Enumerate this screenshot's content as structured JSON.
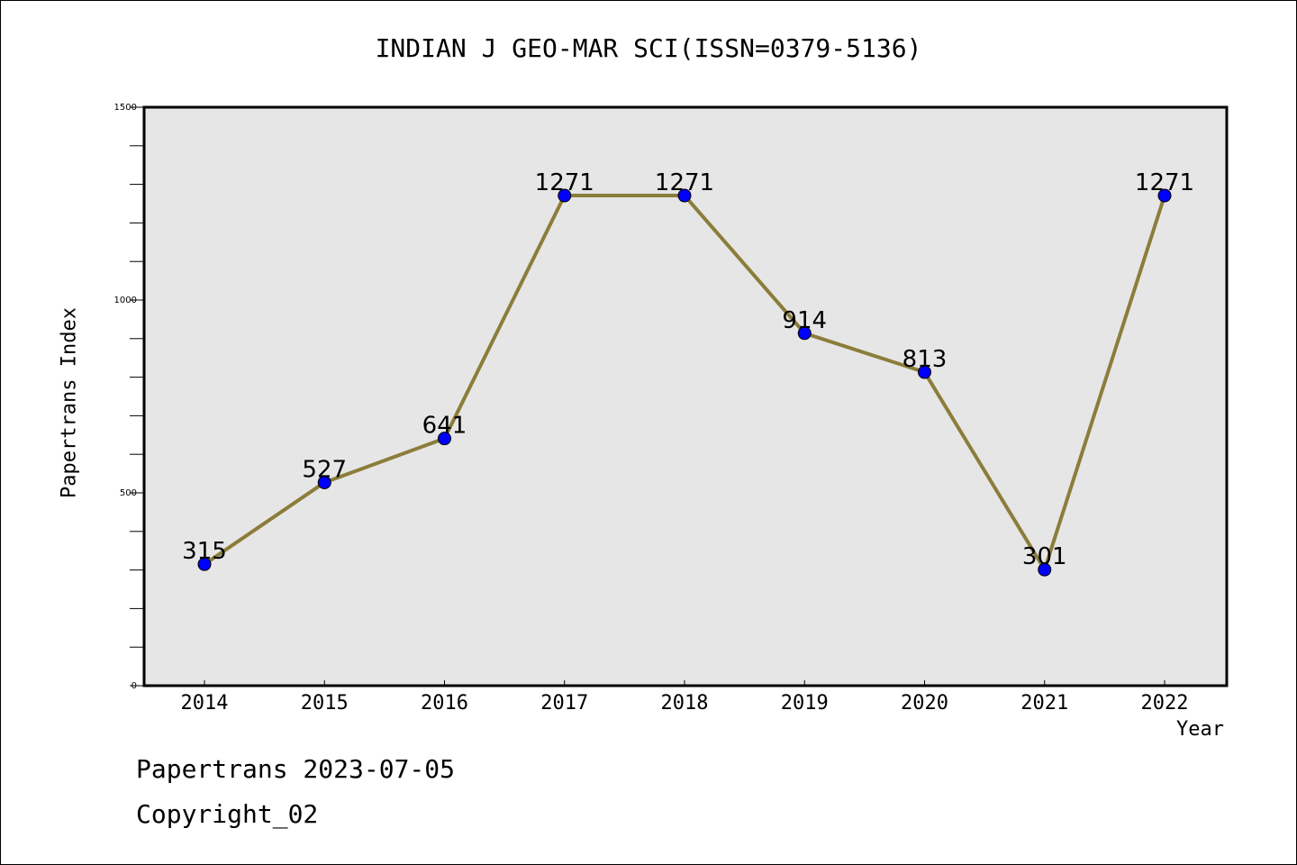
{
  "chart_data": {
    "type": "line",
    "title": "INDIAN J GEO-MAR SCI(ISSN=0379-5136)",
    "xlabel": "Year",
    "ylabel": "Papertrans Index",
    "categories": [
      "2014",
      "2015",
      "2016",
      "2017",
      "2018",
      "2019",
      "2020",
      "2021",
      "2022"
    ],
    "values": [
      315,
      527,
      641,
      1271,
      1271,
      914,
      813,
      301,
      1271
    ],
    "ylim": [
      0,
      1500
    ],
    "yticks": [
      0,
      500,
      1000,
      1500
    ],
    "line_color": "#8b7d3a",
    "marker_color": "#0000ff",
    "plot_background": "#e6e6e6",
    "grid": false
  },
  "footer": {
    "date_text": "Papertrans 2023-07-05",
    "copyright_text": "Copyright_02"
  }
}
